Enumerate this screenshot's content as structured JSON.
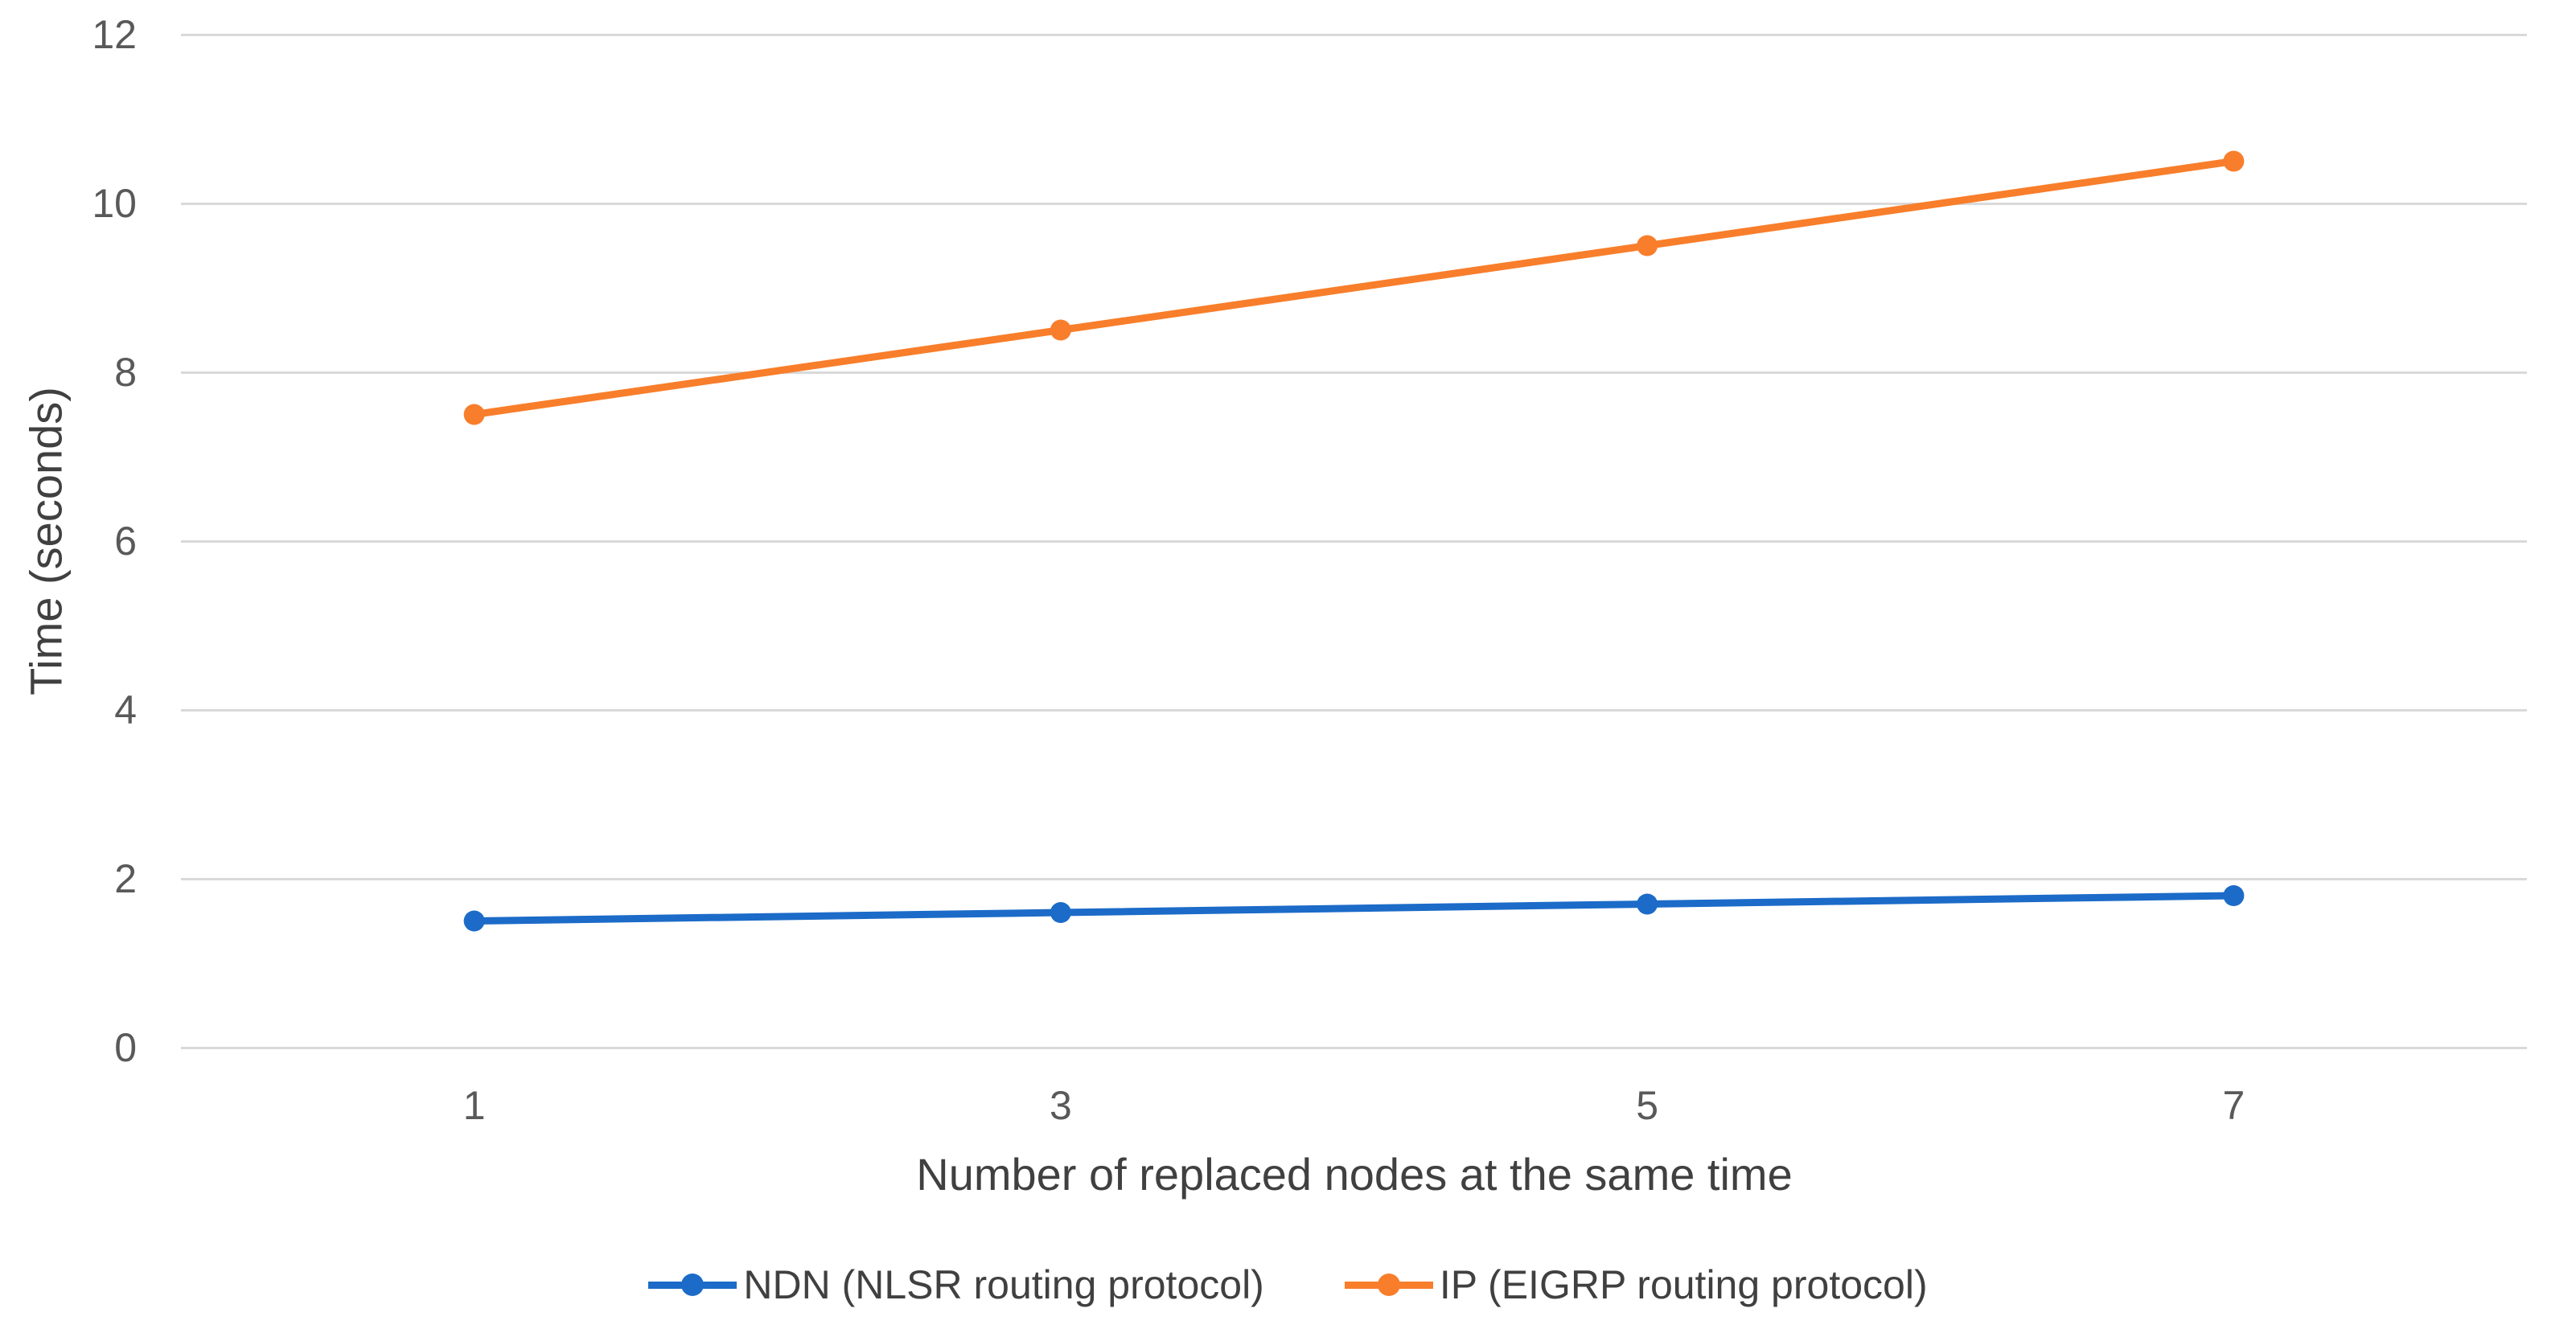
{
  "chart_data": {
    "type": "line",
    "categories": [
      "1",
      "3",
      "5",
      "7"
    ],
    "series": [
      {
        "id": "ndn",
        "name": "NDN (NLSR routing protocol)",
        "color": "#1C6BC8",
        "values": [
          1.5,
          1.6,
          1.7,
          1.8
        ]
      },
      {
        "id": "ip",
        "name": "IP (EIGRP routing protocol)",
        "color": "#F87E2B",
        "values": [
          7.5,
          8.5,
          9.5,
          10.5
        ]
      }
    ],
    "title": "",
    "xlabel": "Number of replaced nodes at the same time",
    "ylabel": "Time (seconds)",
    "ylim": [
      0,
      12
    ],
    "ytick_step": 2,
    "grid": "horizontal",
    "legend_position": "bottom",
    "gridline_color": "#D9D9D9",
    "tick_label_color": "#595959",
    "axis_title_color": "#404040",
    "background_color": "#ffffff"
  }
}
